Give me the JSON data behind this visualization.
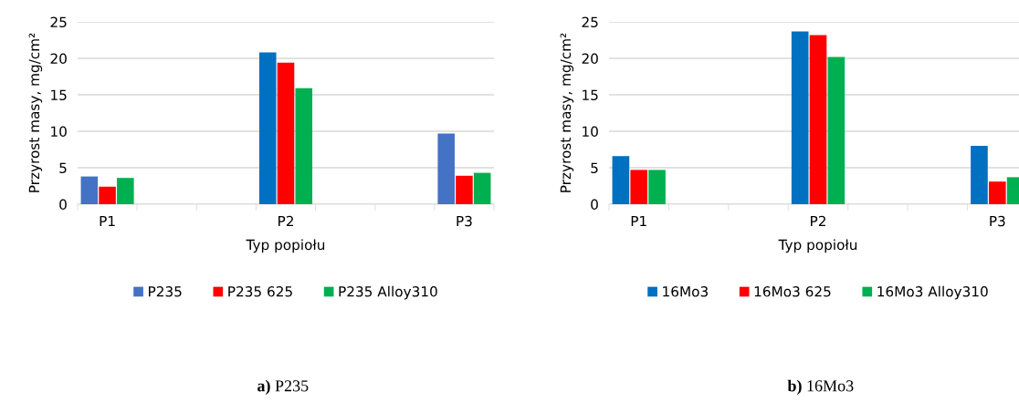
{
  "chart_data": [
    {
      "type": "bar",
      "categories": [
        "P1",
        null,
        null,
        "P2",
        null,
        null,
        "P3"
      ],
      "xlabel": "Typ popiołu",
      "ylabel": "Przyrost masy, mg/cm²",
      "ylim": [
        0,
        25
      ],
      "yticks": [
        0,
        5,
        10,
        15,
        20,
        25
      ],
      "grid": "y",
      "legend": "bottom",
      "annotations": [
        "a) P235"
      ],
      "series": [
        {
          "name": "P235",
          "colors": [
            "#4472c4",
            null,
            null,
            "#0070c0",
            null,
            null,
            "#4472c4"
          ],
          "values": [
            3.8,
            null,
            null,
            20.8,
            null,
            null,
            9.7
          ]
        },
        {
          "name": "P235 625",
          "color": "#ff0000",
          "values": [
            2.4,
            null,
            null,
            19.4,
            null,
            null,
            3.9
          ]
        },
        {
          "name": "P235 Alloy310",
          "color": "#00b050",
          "values": [
            3.6,
            null,
            null,
            15.9,
            null,
            null,
            4.3
          ]
        }
      ]
    },
    {
      "type": "bar",
      "categories": [
        "P1",
        null,
        null,
        "P2",
        null,
        null,
        "P3"
      ],
      "xlabel": "Typ popiołu",
      "ylabel": "Przyrost masy, mg/cm²",
      "ylim": [
        0,
        25
      ],
      "yticks": [
        0,
        5,
        10,
        15,
        20,
        25
      ],
      "grid": "y",
      "legend": "bottom",
      "annotations": [
        "b) 16Mo3"
      ],
      "series": [
        {
          "name": "16Mo3",
          "color": "#0070c0",
          "values": [
            6.6,
            null,
            null,
            23.7,
            null,
            null,
            8.0
          ]
        },
        {
          "name": "16Mo3 625",
          "color": "#ff0000",
          "values": [
            4.7,
            null,
            null,
            23.2,
            null,
            null,
            3.1
          ]
        },
        {
          "name": "16Mo3 Alloy310",
          "color": "#00b050",
          "values": [
            4.7,
            null,
            null,
            20.2,
            null,
            null,
            3.7
          ]
        }
      ]
    }
  ]
}
